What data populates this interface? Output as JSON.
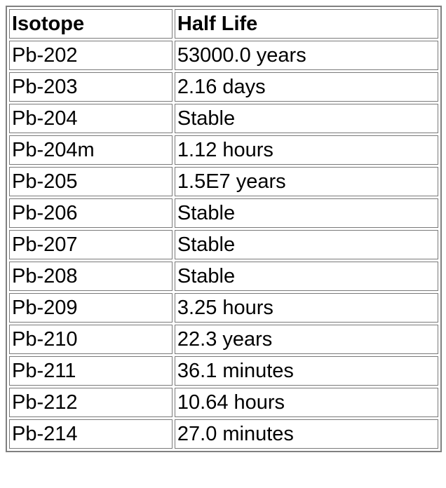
{
  "table": {
    "headers": [
      "Isotope",
      "Half Life"
    ],
    "rows": [
      [
        "Pb-202",
        "53000.0 years"
      ],
      [
        "Pb-203",
        "2.16 days"
      ],
      [
        "Pb-204",
        "Stable"
      ],
      [
        "Pb-204m",
        "1.12 hours"
      ],
      [
        "Pb-205",
        "1.5E7 years"
      ],
      [
        "Pb-206",
        "Stable"
      ],
      [
        "Pb-207",
        "Stable"
      ],
      [
        "Pb-208",
        "Stable"
      ],
      [
        "Pb-209",
        "3.25 hours"
      ],
      [
        "Pb-210",
        "22.3 years"
      ],
      [
        "Pb-211",
        "36.1 minutes"
      ],
      [
        "Pb-212",
        "10.64 hours"
      ],
      [
        "Pb-214",
        "27.0 minutes"
      ]
    ]
  }
}
